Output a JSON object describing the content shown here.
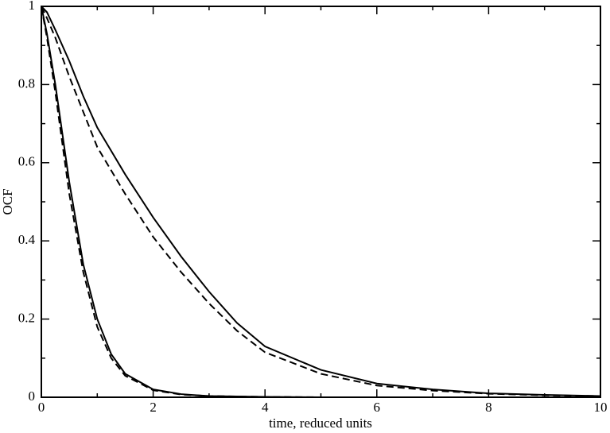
{
  "chart_data": {
    "type": "line",
    "x_label": "time, reduced units",
    "y_label": "OCF",
    "x": [
      0,
      0.1,
      0.25,
      0.5,
      0.75,
      1,
      1.25,
      1.5,
      2,
      2.5,
      3,
      3.5,
      4,
      5,
      6,
      7,
      8,
      9,
      10
    ],
    "series": [
      {
        "color": "#000000",
        "dash": false,
        "values": [
          1,
          0.985,
          0.94,
          0.86,
          0.77,
          0.69,
          0.63,
          0.57,
          0.46,
          0.36,
          0.27,
          0.19,
          0.13,
          0.07,
          0.035,
          0.02,
          0.01,
          0.006,
          0.003
        ]
      },
      {
        "color": "#000000",
        "dash": true,
        "values": [
          1,
          0.97,
          0.92,
          0.82,
          0.73,
          0.64,
          0.58,
          0.52,
          0.41,
          0.32,
          0.24,
          0.17,
          0.115,
          0.06,
          0.03,
          0.017,
          0.009,
          0.005,
          0.003
        ]
      },
      {
        "color": "#000000",
        "dash": false,
        "values": [
          1,
          0.93,
          0.8,
          0.55,
          0.34,
          0.2,
          0.11,
          0.06,
          0.02,
          0.008,
          0.003,
          0.002,
          0.001,
          0,
          0,
          0,
          0,
          0,
          0
        ]
      },
      {
        "color": "#000000",
        "dash": true,
        "values": [
          1,
          0.92,
          0.78,
          0.52,
          0.32,
          0.18,
          0.1,
          0.055,
          0.018,
          0.007,
          0.003,
          0.002,
          0.001,
          0,
          0,
          0,
          0,
          0,
          0
        ]
      }
    ],
    "xlim": [
      0,
      10
    ],
    "ylim": [
      0,
      1
    ],
    "xticks": [
      0,
      2,
      4,
      6,
      8,
      10
    ],
    "yticks": [
      0,
      0.2,
      0.4,
      0.6,
      0.8,
      1
    ],
    "xminorticks": [
      1,
      3,
      5,
      7,
      9
    ],
    "yminorticks": [
      0.1,
      0.3,
      0.5,
      0.7,
      0.9
    ],
    "grid": false
  }
}
